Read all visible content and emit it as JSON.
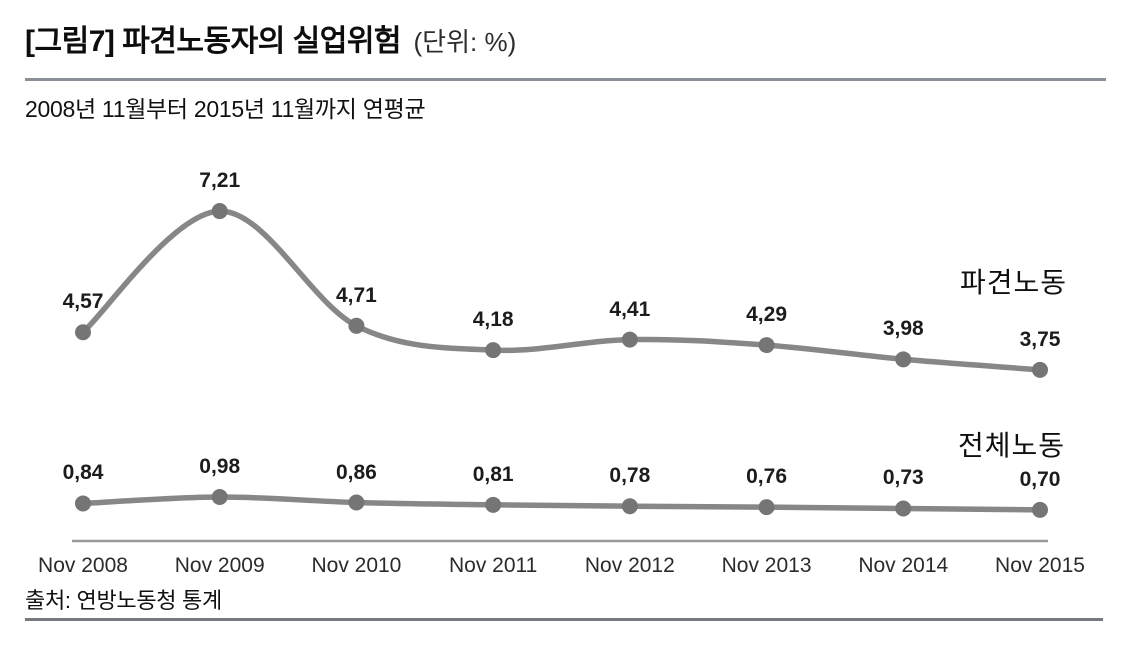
{
  "header": {
    "title": "[그림7] 파견노동자의 실업위험",
    "unit_note": "(단위: %)"
  },
  "subtitle": "2008년 11월부터 2015년 11월까지 연평균",
  "source": "출처: 연방노동청 통계",
  "chart_data": {
    "type": "line",
    "title": "파견노동자의 실업위험 (단위: %)",
    "xlabel": "",
    "ylabel": "",
    "categories": [
      "Nov 2008",
      "Nov 2009",
      "Nov 2010",
      "Nov 2011",
      "Nov 2012",
      "Nov 2013",
      "Nov 2014",
      "Nov 2015"
    ],
    "series": [
      {
        "name": "파견노동",
        "values": [
          4.57,
          7.21,
          4.71,
          4.18,
          4.41,
          4.29,
          3.98,
          3.75
        ],
        "value_labels": [
          "4,57",
          "7,21",
          "4,71",
          "4,18",
          "4,41",
          "4,29",
          "3,98",
          "3,75"
        ]
      },
      {
        "name": "전체노동",
        "values": [
          0.84,
          0.98,
          0.86,
          0.81,
          0.78,
          0.76,
          0.73,
          0.7
        ],
        "value_labels": [
          "0,84",
          "0,98",
          "0,86",
          "0,81",
          "0,78",
          "0,76",
          "0,73",
          "0,70"
        ]
      }
    ],
    "ylim": [
      0,
      8
    ],
    "decimal_separator": ",",
    "grid": false,
    "legend_position": "inline-right",
    "line_color": "#878787",
    "marker_color": "#757575",
    "axis_color": "#9a9a9a",
    "label_color": "#1c1c1c"
  }
}
